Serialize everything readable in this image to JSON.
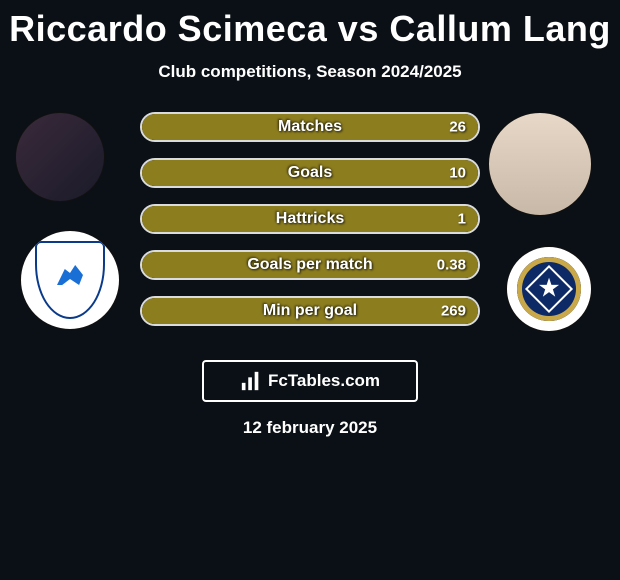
{
  "title": "Riccardo Scimeca vs Callum Lang",
  "subtitle": "Club competitions, Season 2024/2025",
  "footer_logo_text": "FcTables.com",
  "footer_date": "12 february 2025",
  "colors": {
    "background": "#0a1015",
    "bar_border": "rgba(255,255,255,0.85)",
    "left_fill": "#8c7d1f",
    "right_fill": "#8c7d1f",
    "text": "#ffffff"
  },
  "typography": {
    "title_fontsize": 36,
    "subtitle_fontsize": 17,
    "bar_label_fontsize": 16,
    "bar_value_fontsize": 15,
    "footer_date_fontsize": 17
  },
  "stats": [
    {
      "label": "Matches",
      "left_pct": 0,
      "right_value": "26",
      "split_pct": 0
    },
    {
      "label": "Goals",
      "left_pct": 0,
      "right_value": "10",
      "split_pct": 0
    },
    {
      "label": "Hattricks",
      "left_pct": 0,
      "right_value": "1",
      "split_pct": 0
    },
    {
      "label": "Goals per match",
      "left_pct": 0,
      "right_value": "0.38",
      "split_pct": 0
    },
    {
      "label": "Min per goal",
      "left_pct": 0,
      "right_value": "269",
      "split_pct": 0
    }
  ]
}
